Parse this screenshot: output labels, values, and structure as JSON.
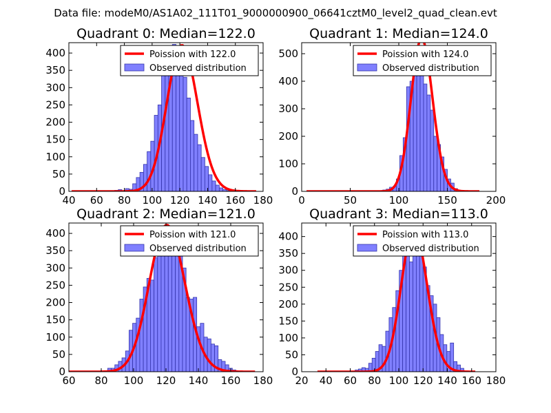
{
  "suptitle": "Data file: modeM0/AS1A02_111T01_9000000900_06641cztM0_level2_quad_clean.evt",
  "colors": {
    "bar_fill": "#8080ff",
    "bar_edge": "#3333aa",
    "line": "#ff0000"
  },
  "chart_data": [
    {
      "type": "bar",
      "title": "Quadrant 0: Median=122.0",
      "xlim": [
        40,
        180
      ],
      "ylim": [
        0,
        430
      ],
      "xticks": [
        40,
        60,
        80,
        100,
        120,
        140,
        160,
        180
      ],
      "xtick_labels": [
        "40",
        "60",
        "80",
        "100",
        "120",
        "140",
        "160",
        "180"
      ],
      "yticks": [
        0,
        50,
        100,
        150,
        200,
        250,
        300,
        350,
        400
      ],
      "ytick_labels": [
        "0",
        "50",
        "100",
        "150",
        "200",
        "250",
        "300",
        "350",
        "400"
      ],
      "legend": {
        "line_label": "Poission with 122.0",
        "bar_label": "Observed distribution",
        "location": "upper right"
      },
      "poisson_mean": 122.0,
      "poisson_scale": 11700,
      "curve_range": [
        42,
        175
      ],
      "bins": {
        "start": 73,
        "width": 2.6,
        "values": [
          3,
          5,
          0,
          8,
          6,
          22,
          40,
          55,
          78,
          115,
          145,
          220,
          250,
          335,
          385,
          360,
          425,
          405,
          345,
          330,
          270,
          205,
          165,
          135,
          98,
          72,
          48,
          30,
          18,
          10,
          5,
          2
        ]
      }
    },
    {
      "type": "bar",
      "title": "Quadrant 1: Median=124.0",
      "xlim": [
        0,
        200
      ],
      "ylim": [
        0,
        540
      ],
      "xticks": [
        0,
        50,
        100,
        150,
        200
      ],
      "xtick_labels": [
        "0",
        "50",
        "100",
        "150",
        "200"
      ],
      "yticks": [
        0,
        100,
        200,
        300,
        400,
        500
      ],
      "ytick_labels": [
        "0",
        "100",
        "200",
        "300",
        "400",
        "500"
      ],
      "legend": {
        "line_label": "Poission with 124.0",
        "bar_label": "Observed distribution",
        "location": "upper right"
      },
      "poisson_mean": 124.0,
      "poisson_scale": 15500,
      "curve_range": [
        5,
        183
      ],
      "bins": {
        "start": 80,
        "width": 3.5,
        "values": [
          2,
          5,
          8,
          15,
          18,
          45,
          130,
          195,
          380,
          400,
          445,
          440,
          470,
          390,
          350,
          295,
          200,
          170,
          125,
          80,
          45,
          30,
          10
        ]
      }
    },
    {
      "type": "bar",
      "title": "Quadrant 2: Median=121.0",
      "xlim": [
        60,
        180
      ],
      "ylim": [
        0,
        430
      ],
      "xticks": [
        60,
        80,
        100,
        120,
        140,
        160,
        180
      ],
      "xtick_labels": [
        "60",
        "80",
        "100",
        "120",
        "140",
        "160",
        "180"
      ],
      "yticks": [
        0,
        50,
        100,
        150,
        200,
        250,
        300,
        350,
        400
      ],
      "ytick_labels": [
        "0",
        "50",
        "100",
        "150",
        "200",
        "250",
        "300",
        "350",
        "400"
      ],
      "legend": {
        "line_label": "Poission with 121.0",
        "bar_label": "Observed distribution",
        "location": "upper right"
      },
      "poisson_mean": 121.0,
      "poisson_scale": 11700,
      "curve_range": [
        60,
        175
      ],
      "bins": {
        "start": 84,
        "width": 2.2,
        "values": [
          10,
          10,
          20,
          30,
          40,
          60,
          120,
          140,
          155,
          210,
          245,
          270,
          265,
          330,
          370,
          420,
          380,
          335,
          390,
          410,
          345,
          300,
          215,
          210,
          215,
          130,
          140,
          100,
          95,
          80,
          75,
          35,
          30,
          20,
          10,
          5
        ]
      }
    },
    {
      "type": "bar",
      "title": "Quadrant 3: Median=113.0",
      "xlim": [
        20,
        180
      ],
      "ylim": [
        0,
        440
      ],
      "xticks": [
        20,
        40,
        60,
        80,
        100,
        120,
        140,
        160,
        180
      ],
      "xtick_labels": [
        "20",
        "40",
        "60",
        "80",
        "100",
        "120",
        "140",
        "160",
        "180"
      ],
      "yticks": [
        0,
        50,
        100,
        150,
        200,
        250,
        300,
        350,
        400
      ],
      "ytick_labels": [
        "0",
        "50",
        "100",
        "150",
        "200",
        "250",
        "300",
        "350",
        "400"
      ],
      "legend": {
        "line_label": "Poission with 113.0",
        "bar_label": "Observed distribution",
        "location": "upper right"
      },
      "poisson_mean": 113.0,
      "poisson_scale": 11300,
      "curve_range": [
        33,
        163
      ],
      "bins": {
        "start": 64,
        "width": 2.8,
        "values": [
          5,
          8,
          12,
          10,
          25,
          40,
          60,
          80,
          75,
          120,
          160,
          190,
          240,
          300,
          350,
          375,
          325,
          345,
          390,
          350,
          310,
          255,
          225,
          200,
          160,
          110,
          80,
          60,
          85,
          30,
          20,
          10
        ]
      }
    }
  ]
}
